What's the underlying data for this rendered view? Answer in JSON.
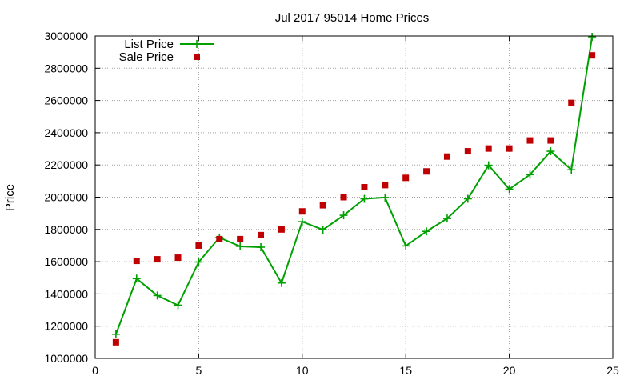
{
  "chart_data": {
    "type": "line",
    "title": "Jul 2017 95014 Home Prices",
    "xlabel": "",
    "ylabel": "Price",
    "xlim": [
      0,
      25
    ],
    "ylim": [
      1000000,
      3000000
    ],
    "x_ticks": [
      0,
      5,
      10,
      15,
      20,
      25
    ],
    "y_ticks": [
      1000000,
      1200000,
      1400000,
      1600000,
      1800000,
      2000000,
      2200000,
      2400000,
      2600000,
      2800000,
      3000000
    ],
    "grid": true,
    "legend_position": "top-left",
    "series": [
      {
        "name": "List Price",
        "style": "line+plus",
        "color": "#00a000",
        "x": [
          1,
          2,
          3,
          4,
          5,
          6,
          7,
          8,
          9,
          10,
          11,
          12,
          13,
          14,
          15,
          16,
          17,
          18,
          19,
          20,
          21,
          22,
          23,
          24
        ],
        "values": [
          1150000,
          1495000,
          1390000,
          1330000,
          1598000,
          1750000,
          1695000,
          1690000,
          1468000,
          1848000,
          1798000,
          1888000,
          1990000,
          1998000,
          1698000,
          1788000,
          1868000,
          1990000,
          2198000,
          2050000,
          2140000,
          2285000,
          2170000,
          2995000
        ]
      },
      {
        "name": "Sale Price",
        "style": "square-points",
        "color": "#c00000",
        "x": [
          1,
          2,
          3,
          4,
          5,
          6,
          7,
          8,
          9,
          10,
          11,
          12,
          13,
          14,
          15,
          16,
          17,
          18,
          19,
          20,
          21,
          22,
          23,
          24
        ],
        "values": [
          1100000,
          1605000,
          1615000,
          1625000,
          1700000,
          1740000,
          1740000,
          1765000,
          1800000,
          1912000,
          1950000,
          2000000,
          2062000,
          2075000,
          2120000,
          2160000,
          2252000,
          2285000,
          2302000,
          2302000,
          2352000,
          2352000,
          2585000,
          2880000
        ]
      }
    ]
  }
}
